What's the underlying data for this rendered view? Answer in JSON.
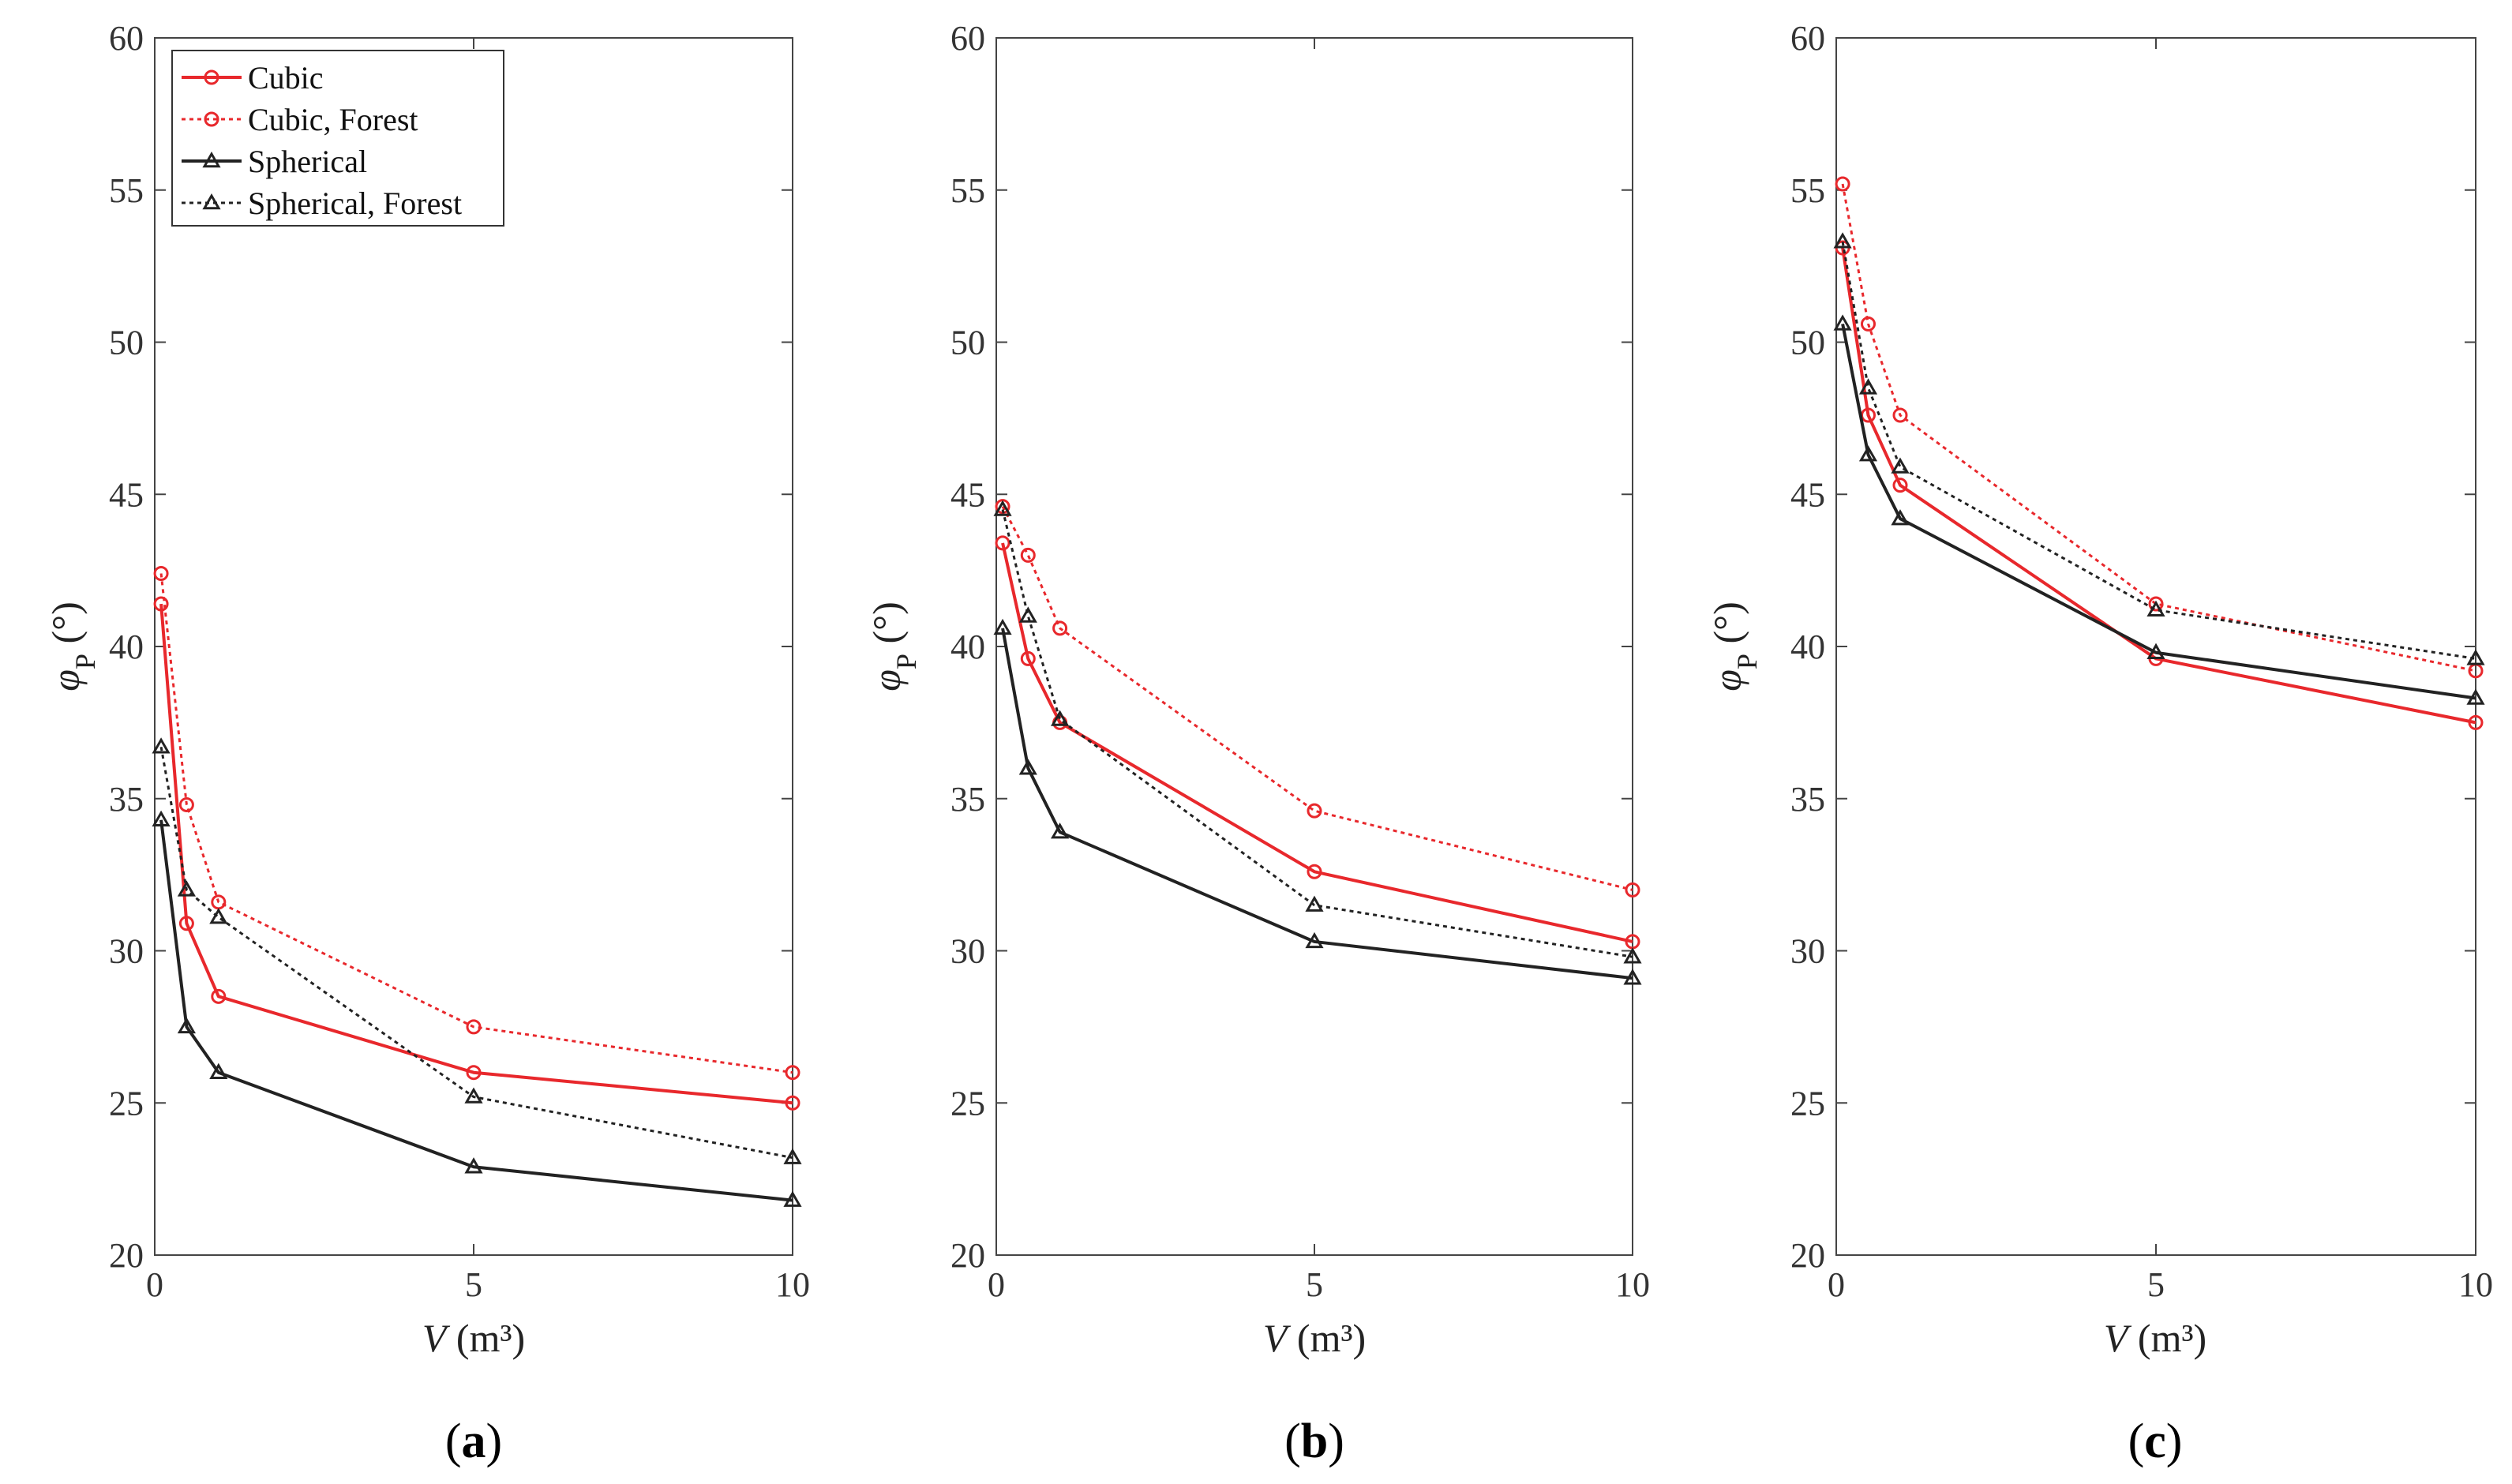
{
  "chart_data": [
    {
      "type": "line",
      "panel_label": "a",
      "xlabel": "V",
      "xlabel_unit": "(m³)",
      "ylabel": "φ",
      "ylabel_sub": "P",
      "ylabel_unit": "(°)",
      "xlim": [
        0,
        10
      ],
      "ylim": [
        20,
        60
      ],
      "xticks": [
        0,
        5,
        10
      ],
      "yticks": [
        20,
        25,
        30,
        35,
        40,
        45,
        50,
        55,
        60
      ],
      "legend_position": "top-left",
      "series": [
        {
          "name": "Cubic",
          "color": "#e8282c",
          "dash": "solid",
          "marker": "circle",
          "x": [
            0.1,
            0.5,
            1,
            5,
            10
          ],
          "y": [
            41.4,
            30.9,
            28.5,
            26.0,
            25.0
          ]
        },
        {
          "name": "Cubic, Forest",
          "color": "#e8282c",
          "dash": "dotted",
          "marker": "circle",
          "x": [
            0.1,
            0.5,
            1,
            5,
            10
          ],
          "y": [
            42.4,
            34.8,
            31.6,
            27.5,
            26.0
          ]
        },
        {
          "name": "Spherical",
          "color": "#222222",
          "dash": "solid",
          "marker": "triangle",
          "x": [
            0.1,
            0.5,
            1,
            5,
            10
          ],
          "y": [
            34.3,
            27.5,
            26.0,
            22.9,
            21.8
          ]
        },
        {
          "name": "Spherical, Forest",
          "color": "#222222",
          "dash": "dotted",
          "marker": "triangle",
          "x": [
            0.1,
            0.5,
            1,
            5,
            10
          ],
          "y": [
            36.7,
            32.0,
            31.1,
            25.2,
            23.2
          ]
        }
      ]
    },
    {
      "type": "line",
      "panel_label": "b",
      "xlabel": "V",
      "xlabel_unit": "(m³)",
      "ylabel": "φ",
      "ylabel_sub": "P",
      "ylabel_unit": "(°)",
      "xlim": [
        0,
        10
      ],
      "ylim": [
        20,
        60
      ],
      "xticks": [
        0,
        5,
        10
      ],
      "yticks": [
        20,
        25,
        30,
        35,
        40,
        45,
        50,
        55,
        60
      ],
      "series": [
        {
          "name": "Cubic",
          "color": "#e8282c",
          "dash": "solid",
          "marker": "circle",
          "x": [
            0.1,
            0.5,
            1,
            5,
            10
          ],
          "y": [
            43.4,
            39.6,
            37.5,
            32.6,
            30.3
          ]
        },
        {
          "name": "Cubic, Forest",
          "color": "#e8282c",
          "dash": "dotted",
          "marker": "circle",
          "x": [
            0.1,
            0.5,
            1,
            5,
            10
          ],
          "y": [
            44.6,
            43.0,
            40.6,
            34.6,
            32.0
          ]
        },
        {
          "name": "Spherical",
          "color": "#222222",
          "dash": "solid",
          "marker": "triangle",
          "x": [
            0.1,
            0.5,
            1,
            5,
            10
          ],
          "y": [
            40.6,
            36.0,
            33.9,
            30.3,
            29.1
          ]
        },
        {
          "name": "Spherical, Forest",
          "color": "#222222",
          "dash": "dotted",
          "marker": "triangle",
          "x": [
            0.1,
            0.5,
            1,
            5,
            10
          ],
          "y": [
            44.5,
            41.0,
            37.6,
            31.5,
            29.8
          ]
        }
      ]
    },
    {
      "type": "line",
      "panel_label": "c",
      "xlabel": "V",
      "xlabel_unit": "(m³)",
      "ylabel": "φ",
      "ylabel_sub": "P",
      "ylabel_unit": "(°)",
      "xlim": [
        0,
        10
      ],
      "ylim": [
        20,
        60
      ],
      "xticks": [
        0,
        5,
        10
      ],
      "yticks": [
        20,
        25,
        30,
        35,
        40,
        45,
        50,
        55,
        60
      ],
      "series": [
        {
          "name": "Cubic",
          "color": "#e8282c",
          "dash": "solid",
          "marker": "circle",
          "x": [
            0.1,
            0.5,
            1,
            5,
            10
          ],
          "y": [
            53.1,
            47.6,
            45.3,
            39.6,
            37.5
          ]
        },
        {
          "name": "Cubic, Forest",
          "color": "#e8282c",
          "dash": "dotted",
          "marker": "circle",
          "x": [
            0.1,
            0.5,
            1,
            5,
            10
          ],
          "y": [
            55.2,
            50.6,
            47.6,
            41.4,
            39.2
          ]
        },
        {
          "name": "Spherical",
          "color": "#222222",
          "dash": "solid",
          "marker": "triangle",
          "x": [
            0.1,
            0.5,
            1,
            5,
            10
          ],
          "y": [
            50.6,
            46.3,
            44.2,
            39.8,
            38.3
          ]
        },
        {
          "name": "Spherical, Forest",
          "color": "#222222",
          "dash": "dotted",
          "marker": "triangle",
          "x": [
            0.1,
            0.5,
            1,
            5,
            10
          ],
          "y": [
            53.3,
            48.5,
            45.9,
            41.2,
            39.6
          ]
        }
      ]
    }
  ]
}
